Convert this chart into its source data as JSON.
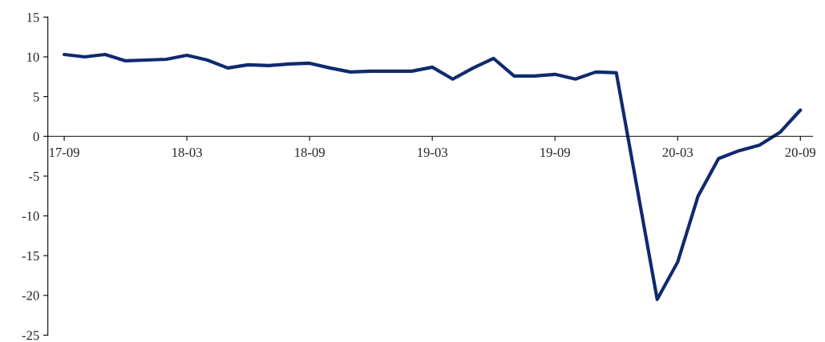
{
  "chart_data": {
    "type": "line",
    "categories": [
      "17-09",
      null,
      null,
      null,
      null,
      null,
      "18-03",
      null,
      null,
      null,
      null,
      null,
      "18-09",
      null,
      null,
      null,
      null,
      null,
      "19-03",
      null,
      null,
      null,
      null,
      null,
      "19-09",
      null,
      null,
      null,
      null,
      null,
      "20-03",
      null,
      null,
      null,
      null,
      null,
      "20-09"
    ],
    "series": [
      {
        "color": "#0f2a6e",
        "values": [
          10.3,
          10.0,
          10.3,
          9.5,
          9.6,
          9.7,
          10.2,
          9.6,
          8.6,
          9.0,
          8.9,
          9.1,
          9.2,
          8.6,
          8.1,
          8.2,
          8.2,
          8.2,
          8.7,
          7.2,
          8.6,
          9.8,
          7.6,
          7.6,
          7.8,
          7.2,
          8.1,
          8.0,
          null,
          -20.5,
          -15.8,
          -7.5,
          -2.8,
          -1.8,
          -1.1,
          0.5,
          3.3
        ]
      }
    ],
    "ylim": [
      -25,
      15
    ],
    "yticks": [
      -25,
      -20,
      -15,
      -10,
      -5,
      0,
      5,
      10,
      15
    ],
    "grid": false,
    "marker": "none",
    "line_style": "solid"
  }
}
